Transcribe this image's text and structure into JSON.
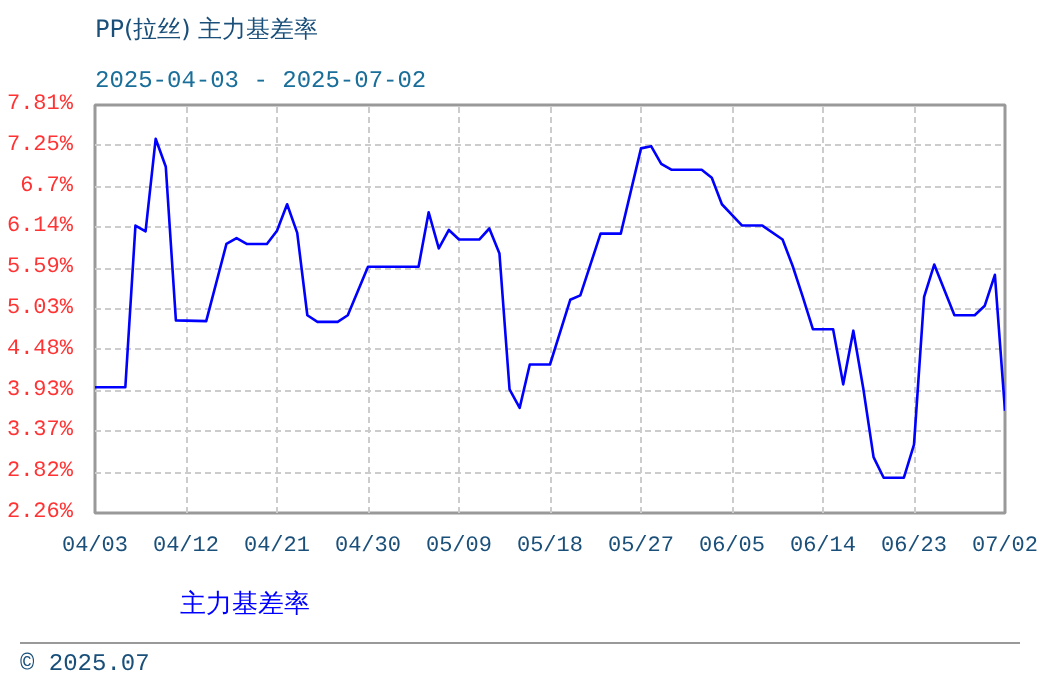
{
  "chart_data": {
    "type": "line",
    "title": "PP(拉丝) 主力基差率",
    "subtitle": "2025-04-03 - 2025-07-02",
    "x": [
      "2025-04-03",
      "2025-04-06",
      "2025-04-07",
      "2025-04-08",
      "2025-04-09",
      "2025-04-10",
      "2025-04-11",
      "2025-04-14",
      "2025-04-16",
      "2025-04-17",
      "2025-04-18",
      "2025-04-20",
      "2025-04-21",
      "2025-04-22",
      "2025-04-23",
      "2025-04-24",
      "2025-04-25",
      "2025-04-27",
      "2025-04-28",
      "2025-04-30",
      "2025-05-05",
      "2025-05-06",
      "2025-05-07",
      "2025-05-08",
      "2025-05-09",
      "2025-05-11",
      "2025-05-12",
      "2025-05-13",
      "2025-05-14",
      "2025-05-15",
      "2025-05-16",
      "2025-05-18",
      "2025-05-20",
      "2025-05-21",
      "2025-05-23",
      "2025-05-25",
      "2025-05-27",
      "2025-05-28",
      "2025-05-29",
      "2025-05-30",
      "2025-06-02",
      "2025-06-03",
      "2025-06-04",
      "2025-06-06",
      "2025-06-08",
      "2025-06-10",
      "2025-06-11",
      "2025-06-12",
      "2025-06-13",
      "2025-06-15",
      "2025-06-16",
      "2025-06-17",
      "2025-06-18",
      "2025-06-19",
      "2025-06-20",
      "2025-06-22",
      "2025-06-23",
      "2025-06-24",
      "2025-06-25",
      "2025-06-27",
      "2025-06-29",
      "2025-06-30",
      "2025-07-01",
      "2025-07-02"
    ],
    "series": [
      {
        "name": "主力基差率",
        "color": "#0000ff",
        "values": [
          3.97,
          3.97,
          6.17,
          6.09,
          7.35,
          6.97,
          4.88,
          4.87,
          5.92,
          6.0,
          5.92,
          5.92,
          6.1,
          6.46,
          6.07,
          4.95,
          4.86,
          4.86,
          4.95,
          5.61,
          5.61,
          6.35,
          5.86,
          6.11,
          5.98,
          5.98,
          6.13,
          5.79,
          3.94,
          3.69,
          4.28,
          4.28,
          5.16,
          5.22,
          6.06,
          6.06,
          7.22,
          7.25,
          7.01,
          6.93,
          6.93,
          6.82,
          6.46,
          6.17,
          6.17,
          5.98,
          5.62,
          5.2,
          4.76,
          4.76,
          4.01,
          4.74,
          3.94,
          3.02,
          2.74,
          2.74,
          3.19,
          5.2,
          5.64,
          4.95,
          4.95,
          5.08,
          5.5,
          3.65
        ]
      }
    ],
    "xlim": [
      "2025-04-03",
      "2025-07-02"
    ],
    "xticks": [
      {
        "value": "2025-04-03",
        "label": "04/03"
      },
      {
        "value": "2025-04-12",
        "label": "04/12"
      },
      {
        "value": "2025-04-21",
        "label": "04/21"
      },
      {
        "value": "2025-04-30",
        "label": "04/30"
      },
      {
        "value": "2025-05-09",
        "label": "05/09"
      },
      {
        "value": "2025-05-18",
        "label": "05/18"
      },
      {
        "value": "2025-05-27",
        "label": "05/27"
      },
      {
        "value": "2025-06-05",
        "label": "06/05"
      },
      {
        "value": "2025-06-14",
        "label": "06/14"
      },
      {
        "value": "2025-06-23",
        "label": "06/23"
      },
      {
        "value": "2025-07-02",
        "label": "07/02"
      }
    ],
    "ylim": [
      2.26,
      7.81
    ],
    "yticks": [
      {
        "value": 2.26,
        "label": "2.26%"
      },
      {
        "value": 2.815,
        "label": "2.82%"
      },
      {
        "value": 3.37,
        "label": "3.37%"
      },
      {
        "value": 3.925,
        "label": "3.93%"
      },
      {
        "value": 4.48,
        "label": "4.48%"
      },
      {
        "value": 5.035,
        "label": "5.03%"
      },
      {
        "value": 5.59,
        "label": "5.59%"
      },
      {
        "value": 6.145,
        "label": "6.14%"
      },
      {
        "value": 6.7,
        "label": "6.7%"
      },
      {
        "value": 7.255,
        "label": "7.25%"
      },
      {
        "value": 7.81,
        "label": "7.81%"
      }
    ],
    "grid": true,
    "legend": "bottom",
    "line_style": "solid",
    "annotations": [
      "© 2025.07"
    ]
  }
}
